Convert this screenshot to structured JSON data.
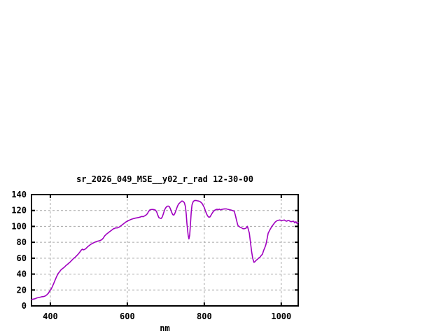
{
  "title": "sr_2026_049_MSE__y02_r_rad 12-30-00",
  "colors": {
    "background": "#ffffff",
    "axis": "#000000",
    "grid": "#a8a8a8",
    "line": "#a000c0",
    "text": "#000000"
  },
  "chart_data": {
    "type": "line",
    "title": "sr_2026_049_MSE__y02_r_rad 12-30-00",
    "xlabel": "nm",
    "ylabel": "",
    "xlim": [
      351,
      1044
    ],
    "ylim": [
      0,
      140
    ],
    "xticks": [
      400,
      600,
      800,
      1000
    ],
    "yticks": [
      0,
      20,
      40,
      60,
      80,
      100,
      120,
      140
    ],
    "grid": true,
    "legend_position": "none",
    "series": [
      {
        "name": "sr_2026_049_MSE__y02_r_rad",
        "color": "#a000c0",
        "points": [
          [
            351,
            8
          ],
          [
            356,
            8.5
          ],
          [
            360,
            9
          ],
          [
            365,
            10
          ],
          [
            369,
            10.5
          ],
          [
            374,
            11
          ],
          [
            378,
            11.5
          ],
          [
            383,
            11.8
          ],
          [
            387,
            12.5
          ],
          [
            391,
            14
          ],
          [
            395,
            16
          ],
          [
            398,
            18.5
          ],
          [
            402,
            21
          ],
          [
            405,
            24
          ],
          [
            409,
            28.5
          ],
          [
            412,
            32
          ],
          [
            416,
            36.5
          ],
          [
            420,
            40.5
          ],
          [
            424,
            43
          ],
          [
            428,
            45.5
          ],
          [
            433,
            47.5
          ],
          [
            437,
            49
          ],
          [
            440,
            50.5
          ],
          [
            445,
            52.5
          ],
          [
            451,
            55
          ],
          [
            456,
            57.5
          ],
          [
            460,
            59.5
          ],
          [
            465,
            61.5
          ],
          [
            469,
            63.5
          ],
          [
            473,
            65.5
          ],
          [
            477,
            68
          ],
          [
            480,
            70
          ],
          [
            483,
            71.3
          ],
          [
            486,
            70.5
          ],
          [
            489,
            71
          ],
          [
            493,
            72.5
          ],
          [
            497,
            74.5
          ],
          [
            501,
            76
          ],
          [
            505,
            77.5
          ],
          [
            509,
            78.5
          ],
          [
            513,
            79.5
          ],
          [
            517,
            80.5
          ],
          [
            521,
            81.2
          ],
          [
            526,
            81.8
          ],
          [
            530,
            82.3
          ],
          [
            534,
            83.5
          ],
          [
            537,
            85
          ],
          [
            541,
            88
          ],
          [
            545,
            90
          ],
          [
            549,
            91.5
          ],
          [
            553,
            93
          ],
          [
            557,
            94.5
          ],
          [
            560,
            95.5
          ],
          [
            564,
            97
          ],
          [
            567,
            97.5
          ],
          [
            570,
            98.3
          ],
          [
            573,
            98
          ],
          [
            577,
            98.8
          ],
          [
            580,
            99.5
          ],
          [
            584,
            101
          ],
          [
            588,
            102.5
          ],
          [
            592,
            104
          ],
          [
            596,
            105.5
          ],
          [
            600,
            106.5
          ],
          [
            604,
            107.5
          ],
          [
            608,
            108.5
          ],
          [
            612,
            109.2
          ],
          [
            616,
            109.8
          ],
          [
            620,
            110.3
          ],
          [
            625,
            110.8
          ],
          [
            630,
            111.3
          ],
          [
            635,
            112
          ],
          [
            638,
            112.5
          ],
          [
            641,
            112.2
          ],
          [
            645,
            113.2
          ],
          [
            649,
            114.5
          ],
          [
            652,
            116
          ],
          [
            655,
            118.5
          ],
          [
            658,
            120.5
          ],
          [
            661,
            121.2
          ],
          [
            665,
            121.3
          ],
          [
            669,
            121.2
          ],
          [
            673,
            120.5
          ],
          [
            676,
            118.5
          ],
          [
            679,
            114.5
          ],
          [
            682,
            111
          ],
          [
            685,
            110.3
          ],
          [
            688,
            110
          ],
          [
            691,
            112
          ],
          [
            694,
            116.5
          ],
          [
            697,
            121
          ],
          [
            700,
            123.5
          ],
          [
            703,
            125.2
          ],
          [
            706,
            125.6
          ],
          [
            709,
            125
          ],
          [
            712,
            122
          ],
          [
            715,
            118
          ],
          [
            718,
            114.8
          ],
          [
            721,
            114.2
          ],
          [
            724,
            117
          ],
          [
            727,
            121
          ],
          [
            730,
            125
          ],
          [
            733,
            128
          ],
          [
            736,
            129.5
          ],
          [
            739,
            130.8
          ],
          [
            742,
            132
          ],
          [
            745,
            131.5
          ],
          [
            748,
            130
          ],
          [
            751,
            125
          ],
          [
            753,
            116
          ],
          [
            755,
            103
          ],
          [
            758,
            89
          ],
          [
            760,
            84.3
          ],
          [
            762,
            89
          ],
          [
            764,
            103
          ],
          [
            766,
            118
          ],
          [
            768,
            127
          ],
          [
            771,
            131
          ],
          [
            774,
            132.4
          ],
          [
            778,
            132.6
          ],
          [
            782,
            132.2
          ],
          [
            786,
            131.8
          ],
          [
            790,
            130.8
          ],
          [
            794,
            129
          ],
          [
            797,
            126.5
          ],
          [
            800,
            123.5
          ],
          [
            803,
            119.5
          ],
          [
            806,
            115.5
          ],
          [
            809,
            113
          ],
          [
            812,
            111.5
          ],
          [
            815,
            112
          ],
          [
            818,
            114.5
          ],
          [
            821,
            117
          ],
          [
            824,
            119
          ],
          [
            827,
            120.3
          ],
          [
            830,
            121
          ],
          [
            833,
            121.7
          ],
          [
            836,
            120.9
          ],
          [
            839,
            121.8
          ],
          [
            842,
            120.7
          ],
          [
            845,
            121.3
          ],
          [
            849,
            121.8
          ],
          [
            853,
            122
          ],
          [
            857,
            122
          ],
          [
            861,
            121.5
          ],
          [
            866,
            121
          ],
          [
            870,
            120.5
          ],
          [
            874,
            119.8
          ],
          [
            878,
            119
          ],
          [
            881,
            113.5
          ],
          [
            884,
            107.5
          ],
          [
            887,
            101.5
          ],
          [
            890,
            100
          ],
          [
            893,
            99
          ],
          [
            896,
            98.5
          ],
          [
            900,
            97.2
          ],
          [
            903,
            97
          ],
          [
            906,
            97.3
          ],
          [
            909,
            98
          ],
          [
            912,
            100
          ],
          [
            914,
            97
          ],
          [
            917,
            91.5
          ],
          [
            920,
            80
          ],
          [
            923,
            68
          ],
          [
            926,
            59.5
          ],
          [
            929,
            54.8
          ],
          [
            932,
            55.8
          ],
          [
            935,
            57.5
          ],
          [
            939,
            59
          ],
          [
            942,
            60.5
          ],
          [
            945,
            61.5
          ],
          [
            948,
            63.5
          ],
          [
            951,
            65
          ],
          [
            954,
            69.5
          ],
          [
            957,
            73
          ],
          [
            960,
            77
          ],
          [
            963,
            84
          ],
          [
            966,
            91.5
          ],
          [
            969,
            94.3
          ],
          [
            972,
            97
          ],
          [
            975,
            99.5
          ],
          [
            978,
            101.5
          ],
          [
            981,
            103.5
          ],
          [
            984,
            105.3
          ],
          [
            987,
            106.5
          ],
          [
            990,
            107.4
          ],
          [
            993,
            107.8
          ],
          [
            996,
            108
          ],
          [
            999,
            107.6
          ],
          [
            1002,
            107.4
          ],
          [
            1005,
            107.8
          ],
          [
            1008,
            108
          ],
          [
            1011,
            107
          ],
          [
            1014,
            106.5
          ],
          [
            1017,
            107.3
          ],
          [
            1020,
            107.4
          ],
          [
            1023,
            106.3
          ],
          [
            1026,
            105.9
          ],
          [
            1029,
            106.3
          ],
          [
            1032,
            106.5
          ],
          [
            1035,
            104.4
          ],
          [
            1038,
            105.9
          ],
          [
            1041,
            103.6
          ],
          [
            1044,
            104.8
          ]
        ]
      }
    ]
  }
}
